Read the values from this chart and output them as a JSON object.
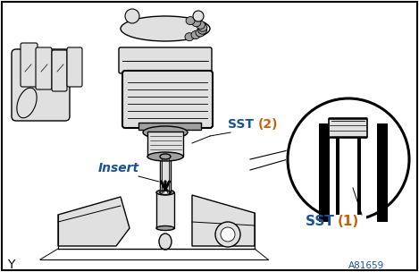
{
  "background_color": "#ffffff",
  "border_color": "#000000",
  "label_insert": "Insert",
  "label_sst1_a": "SST ",
  "label_sst1_b": "(1)",
  "label_sst2_a": "SST ",
  "label_sst2_b": "(2)",
  "label_y": "Y",
  "label_code": "A81659",
  "color_black": "#000000",
  "color_blue": "#1a5296",
  "color_orange": "#c8600a",
  "color_gray_light": "#e0e0e0",
  "color_gray_mid": "#a0a0a0",
  "color_gray_dark": "#505050",
  "figsize": [
    4.69,
    3.04
  ],
  "dpi": 100
}
